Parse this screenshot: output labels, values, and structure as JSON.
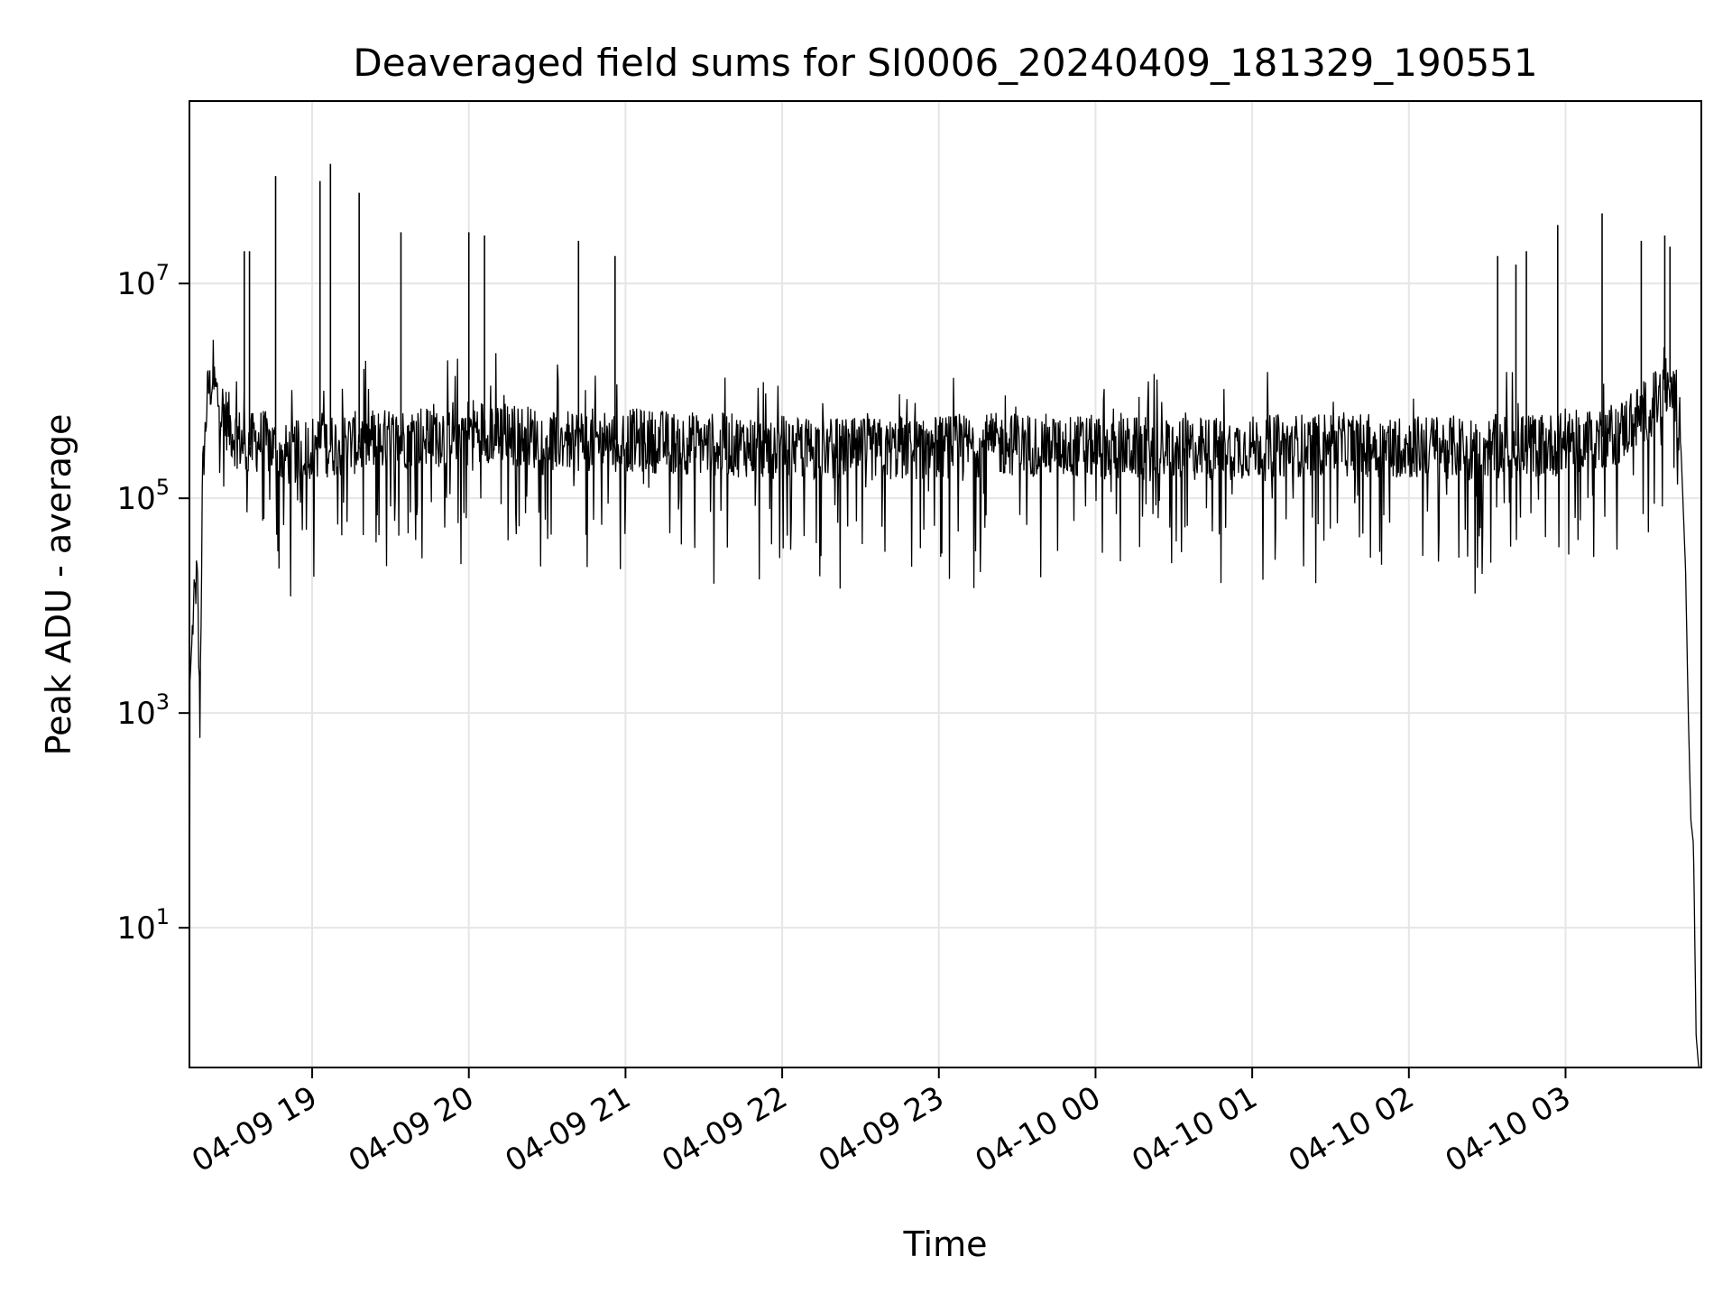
{
  "chart_data": {
    "type": "line",
    "title": "Deaveraged field sums for SI0006_20240409_181329_190551",
    "xlabel": "Time",
    "ylabel": "Peak ADU - average",
    "yscale": "log",
    "ylim": [
      0.5,
      500000000
    ],
    "xlim": [
      "2024-04-09 18:13",
      "2024-04-10 03:52"
    ],
    "grid": true,
    "line_color": "#000000",
    "x_ticks": [
      {
        "t": "2024-04-09 19:00",
        "label": "04-09 19"
      },
      {
        "t": "2024-04-09 20:00",
        "label": "04-09 20"
      },
      {
        "t": "2024-04-09 21:00",
        "label": "04-09 21"
      },
      {
        "t": "2024-04-09 22:00",
        "label": "04-09 22"
      },
      {
        "t": "2024-04-09 23:00",
        "label": "04-09 23"
      },
      {
        "t": "2024-04-10 00:00",
        "label": "04-10 00"
      },
      {
        "t": "2024-04-10 01:00",
        "label": "04-10 01"
      },
      {
        "t": "2024-04-10 02:00",
        "label": "04-10 02"
      },
      {
        "t": "2024-04-10 03:00",
        "label": "04-10 03"
      }
    ],
    "y_ticks": [
      {
        "value": 10,
        "base": "10",
        "exp": "1"
      },
      {
        "value": 1000,
        "base": "10",
        "exp": "3"
      },
      {
        "value": 100000,
        "base": "10",
        "exp": "5"
      },
      {
        "value": 10000000,
        "base": "10",
        "exp": "7"
      }
    ],
    "series": [
      {
        "x": [
          "2024-04-09 18:13",
          "2024-04-09 18:13",
          "2024-04-09 18:14",
          "2024-04-09 18:15",
          "2024-04-09 18:16",
          "2024-04-09 18:17",
          "2024-04-09 18:18",
          "2024-04-09 18:20",
          "2024-04-09 18:22",
          "2024-04-09 18:25",
          "2024-04-09 18:30",
          "2024-04-09 18:35",
          "2024-04-09 18:40",
          "2024-04-09 18:45",
          "2024-04-09 18:50",
          "2024-04-09 19:00",
          "2024-04-09 19:30",
          "2024-04-09 20:00",
          "2024-04-09 20:30",
          "2024-04-09 21:00",
          "2024-04-09 21:30",
          "2024-04-09 22:00",
          "2024-04-09 22:30",
          "2024-04-09 23:00",
          "2024-04-09 23:30",
          "2024-04-10 00:00",
          "2024-04-10 00:30",
          "2024-04-10 01:00",
          "2024-04-10 01:30",
          "2024-04-10 02:00",
          "2024-04-10 02:30",
          "2024-04-10 03:00",
          "2024-04-10 03:20",
          "2024-04-10 03:35",
          "2024-04-10 03:40",
          "2024-04-10 03:44",
          "2024-04-10 03:46",
          "2024-04-10 03:47",
          "2024-04-10 03:48",
          "2024-04-10 03:49",
          "2024-04-10 03:50",
          "2024-04-10 03:51"
        ],
        "y": [
          0.5,
          1500,
          5000,
          12000,
          20000,
          800,
          150000,
          1000000,
          1200000,
          700000,
          400000,
          300000,
          350000,
          300000,
          250000,
          300000,
          350000,
          450000,
          350000,
          350000,
          320000,
          300000,
          280000,
          300000,
          320000,
          300000,
          280000,
          300000,
          320000,
          300000,
          300000,
          320000,
          400000,
          800000,
          1200000,
          400000,
          20000,
          1000,
          100,
          60,
          1,
          0.5
        ]
      }
    ],
    "spikes": [
      {
        "t": "2024-04-09 18:34",
        "y": 20000000
      },
      {
        "t": "2024-04-09 18:36",
        "y": 20000000
      },
      {
        "t": "2024-04-09 18:46",
        "y": 100000000
      },
      {
        "t": "2024-04-09 19:03",
        "y": 90000000
      },
      {
        "t": "2024-04-09 19:07",
        "y": 130000000
      },
      {
        "t": "2024-04-09 19:18",
        "y": 70000000
      },
      {
        "t": "2024-04-09 19:34",
        "y": 30000000
      },
      {
        "t": "2024-04-09 20:00",
        "y": 30000000
      },
      {
        "t": "2024-04-09 20:06",
        "y": 28000000
      },
      {
        "t": "2024-04-09 20:42",
        "y": 25000000
      },
      {
        "t": "2024-04-09 20:56",
        "y": 18000000
      },
      {
        "t": "2024-04-10 02:34",
        "y": 18000000
      },
      {
        "t": "2024-04-10 02:41",
        "y": 15000000
      },
      {
        "t": "2024-04-10 02:45",
        "y": 20000000
      },
      {
        "t": "2024-04-10 02:57",
        "y": 35000000
      },
      {
        "t": "2024-04-10 03:14",
        "y": 45000000
      },
      {
        "t": "2024-04-10 03:29",
        "y": 25000000
      },
      {
        "t": "2024-04-10 03:38",
        "y": 28000000
      },
      {
        "t": "2024-04-10 03:40",
        "y": 22000000
      }
    ]
  }
}
